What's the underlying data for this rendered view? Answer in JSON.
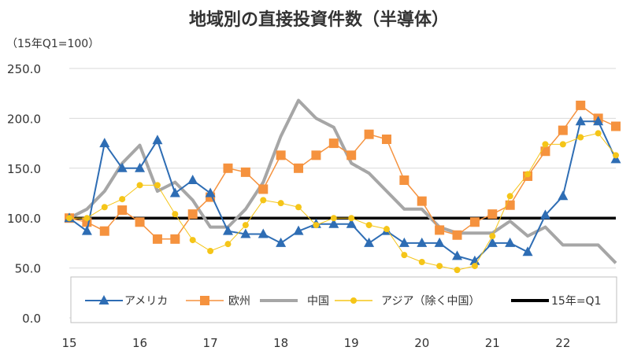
{
  "chart_data": {
    "type": "line",
    "title": "地域別の直接投資件数（半導体）",
    "ylabel": "（15年Q1=100）",
    "xlabel": "",
    "ylim": [
      0,
      250
    ],
    "yticks": [
      "0.0",
      "50.0",
      "100.0",
      "150.0",
      "200.0",
      "250.0"
    ],
    "ytick_values": [
      0,
      50,
      100,
      150,
      200,
      250
    ],
    "x_range": [
      0,
      31
    ],
    "xtick_labels": [
      "15",
      "16",
      "17",
      "18",
      "19",
      "20",
      "21",
      "22"
    ],
    "xtick_positions": [
      0,
      4,
      8,
      12,
      16,
      20,
      24,
      28
    ],
    "grid": true,
    "legend_position": "bottom-inside",
    "series": [
      {
        "name": "アメリカ",
        "color": "#2e6db4",
        "marker": "triangle",
        "values": [
          100,
          87,
          175,
          150,
          150,
          178,
          125,
          138,
          125,
          87,
          84,
          84,
          75,
          87,
          94,
          94,
          94,
          75,
          87,
          75,
          75,
          75,
          62,
          57,
          75,
          75,
          66,
          103,
          122,
          197,
          197,
          159
        ]
      },
      {
        "name": "欧州",
        "color": "#f5923e",
        "marker": "square",
        "values": [
          100,
          96,
          87,
          108,
          96,
          79,
          79,
          104,
          121,
          150,
          146,
          129,
          163,
          150,
          163,
          175,
          163,
          184,
          179,
          138,
          117,
          88,
          83,
          96,
          104,
          113,
          142,
          167,
          188,
          213,
          200,
          192
        ]
      },
      {
        "name": "中国",
        "color": "#a6a6a6",
        "marker": "none",
        "values": [
          100,
          109,
          127,
          155,
          173,
          127,
          136,
          118,
          91,
          91,
          109,
          136,
          182,
          218,
          200,
          191,
          155,
          145,
          127,
          109,
          109,
          91,
          85,
          85,
          85,
          97,
          82,
          91,
          73,
          73,
          73,
          55
        ]
      },
      {
        "name": "アジア（除く中国）",
        "color": "#f5c518",
        "marker": "circle",
        "values": [
          100,
          100,
          111,
          119,
          133,
          133,
          104,
          78,
          67,
          74,
          93,
          118,
          115,
          111,
          93,
          100,
          100,
          93,
          89,
          63,
          56,
          52,
          48,
          52,
          82,
          122,
          144,
          174,
          174,
          181,
          185,
          163
        ]
      },
      {
        "name": "15年=Q1",
        "color": "#000000",
        "marker": "none",
        "values": [
          100,
          100,
          100,
          100,
          100,
          100,
          100,
          100,
          100,
          100,
          100,
          100,
          100,
          100,
          100,
          100,
          100,
          100,
          100,
          100,
          100,
          100,
          100,
          100,
          100,
          100,
          100,
          100,
          100,
          100,
          100,
          100
        ]
      }
    ]
  }
}
